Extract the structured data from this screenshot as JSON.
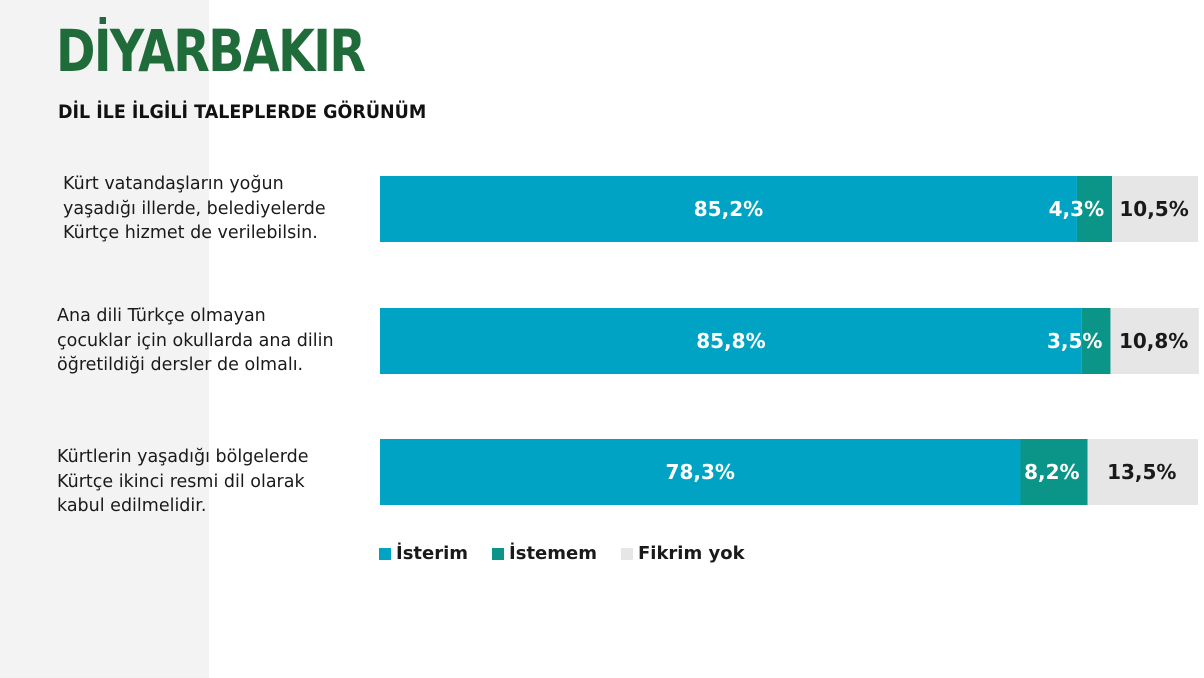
{
  "header": {
    "title": "DİYARBAKIR",
    "subtitle": "DİL İLE İLGİLİ TALEPLERDE GÖRÜNÜM",
    "title_color": "#1f6b3a"
  },
  "chart_data": {
    "type": "bar",
    "orientation": "horizontal",
    "stacked": true,
    "percent": true,
    "categories": [
      "Kürt vatandaşların yoğun yaşadığı illerde, belediyelerde Kürtçe hizmet de verilebilsin.",
      "Ana dili Türkçe olmayan çocuklar için okullarda ana dilin öğretildiği dersler de olmalı.",
      "Kürtlerin yaşadığı bölgelerde Kürtçe ikinci resmi dil olarak kabul edilmelidir."
    ],
    "category_lines": [
      [
        "Kürt vatandaşların yoğun",
        "yaşadığı illerde, belediyelerde",
        "Kürtçe hizmet de verilebilsin."
      ],
      [
        "Ana dili Türkçe olmayan",
        "çocuklar için okullarda ana dilin",
        "öğretildiği dersler de olmalı."
      ],
      [
        "Kürtlerin yaşadığı bölgelerde",
        "Kürtçe ikinci resmi dil olarak",
        "kabul edilmelidir."
      ]
    ],
    "series": [
      {
        "name": "İsterim",
        "color": "#00a3c4",
        "values": [
          85.2,
          85.8,
          78.3
        ],
        "labels": [
          "85,2%",
          "85,8%",
          "78,3%"
        ]
      },
      {
        "name": "İstemem",
        "color": "#0b9488",
        "values": [
          4.3,
          3.5,
          8.2
        ],
        "labels": [
          "4,3%",
          "3,5%",
          "8,2%"
        ]
      },
      {
        "name": "Fikrim yok",
        "color": "#e6e6e6",
        "values": [
          10.5,
          10.8,
          13.5
        ],
        "labels": [
          "10,5%",
          "10,8%",
          "13,5%"
        ]
      }
    ],
    "xlim": [
      0,
      100
    ],
    "legend_position": "bottom-left",
    "grid": false
  }
}
